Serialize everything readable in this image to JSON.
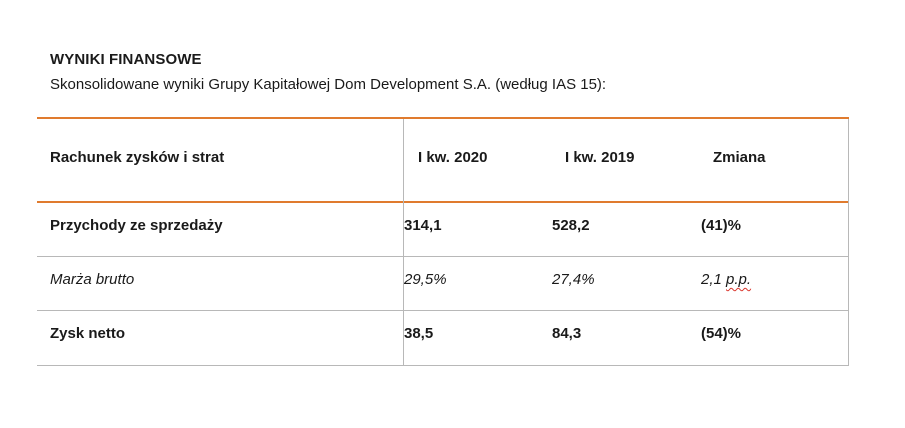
{
  "document": {
    "heading": "WYNIKI FINANSOWE",
    "subheading": "Skonsolidowane wyniki Grupy Kapitałowej Dom Development S.A. (według IAS 15):"
  },
  "table": {
    "header": {
      "label": "Rachunek zysków i strat",
      "col1": "I kw. 2020",
      "col2": "I kw. 2019",
      "col3": "Zmiana"
    },
    "rows": [
      {
        "label": "Przychody ze sprzedaży",
        "v1": "314,1",
        "v2": "528,2",
        "v3": "(41)%"
      },
      {
        "label": "Marża brutto",
        "v1": "29,5%",
        "v2": "27,4%",
        "v3_num": "2,1 ",
        "v3_unit": "p.p."
      },
      {
        "label": "Zysk netto",
        "v1": "38,5",
        "v2": "84,3",
        "v3": "(54)%"
      }
    ],
    "accent_color": "#e07b2e",
    "border_color": "#b8b8b8"
  }
}
